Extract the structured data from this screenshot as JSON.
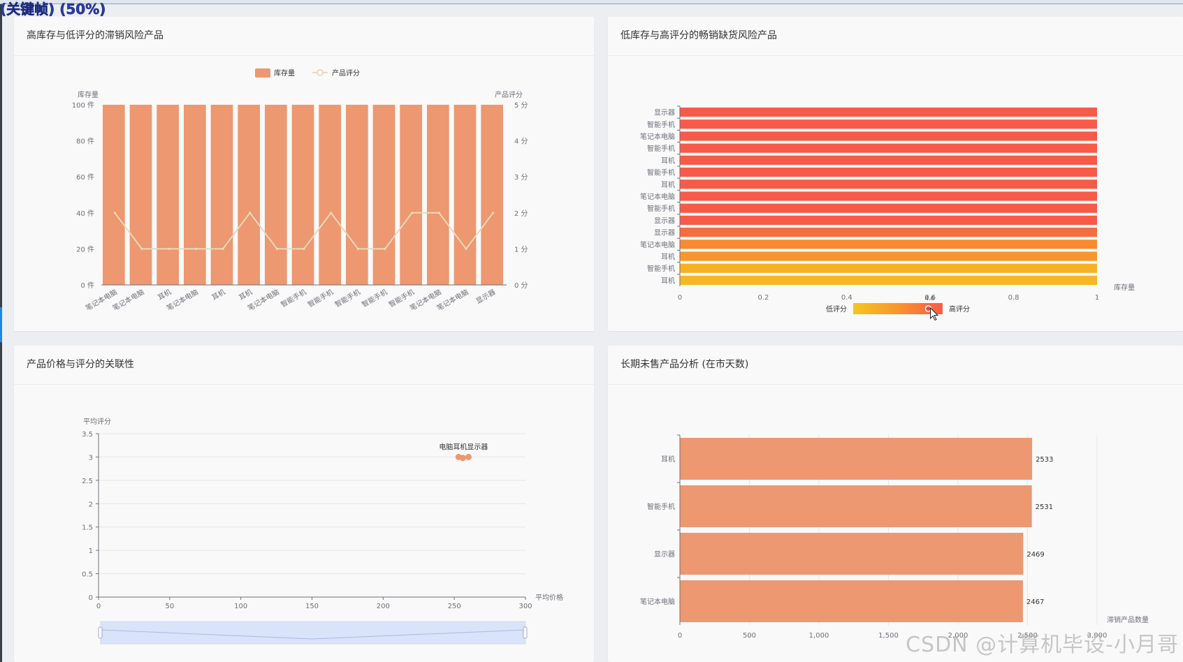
{
  "header": {
    "caption": "(关键帧) (50%)"
  },
  "watermark": "CSDN @计算机毕设-小月哥",
  "colors": {
    "bar": "#ed9870",
    "line": "#e8d9bc",
    "grid": "#e6e6e6",
    "axis": "#6e7079",
    "heat_low": "#f6c520",
    "heat_mid": "#f7962c",
    "heat_high": "#f85a4a",
    "zoom": "#c8d7f7"
  },
  "panels": {
    "p1": {
      "title": "高库存与低评分的滞销风险产品"
    },
    "p2": {
      "title": "低库存与高评分的畅销缺货风险产品"
    },
    "p3": {
      "title": "产品价格与评分的关联性"
    },
    "p4": {
      "title": "长期未售产品分析 (在市天数)"
    }
  },
  "chart_data": [
    {
      "id": "p1",
      "type": "bar",
      "title": "高库存与低评分的滞销风险产品",
      "legend": [
        "库存量",
        "产品评分"
      ],
      "legend_position": "top-center",
      "ylabel_left": "库存量",
      "ylabel_right": "产品评分",
      "y_left_ticks": [
        "0 件",
        "20 件",
        "40 件",
        "60 件",
        "80 件",
        "100 件"
      ],
      "y_right_ticks": [
        "0 分",
        "1 分",
        "2 分",
        "3 分",
        "4 分",
        "5 分"
      ],
      "ylim_left": [
        0,
        100
      ],
      "ylim_right": [
        0,
        5
      ],
      "categories": [
        "笔记本电脑",
        "笔记本电脑",
        "耳机",
        "笔记本电脑",
        "耳机",
        "耳机",
        "笔记本电脑",
        "智能手机",
        "智能手机",
        "智能手机",
        "智能手机",
        "智能手机",
        "笔记本电脑",
        "笔记本电脑",
        "显示器"
      ],
      "series": [
        {
          "name": "库存量",
          "type": "bar",
          "axis": "left",
          "values": [
            100,
            100,
            100,
            100,
            100,
            100,
            100,
            100,
            100,
            100,
            100,
            100,
            100,
            100,
            100
          ]
        },
        {
          "name": "产品评分",
          "type": "line",
          "axis": "right",
          "values": [
            2,
            1,
            1,
            1,
            1,
            2,
            1,
            1,
            2,
            1,
            1,
            2,
            2,
            1,
            2
          ]
        }
      ]
    },
    {
      "id": "p2",
      "type": "bar",
      "orientation": "horizontal",
      "title": "低库存与高评分的畅销缺货风险产品",
      "xlabel": "库存量",
      "xlim": [
        0,
        1
      ],
      "x_ticks": [
        "0",
        "0.2",
        "0.4",
        "0.6",
        "0.8",
        "1"
      ],
      "categories": [
        "显示器",
        "智能手机",
        "笔记本电脑",
        "智能手机",
        "耳机",
        "智能手机",
        "耳机",
        "笔记本电脑",
        "智能手机",
        "显示器",
        "显示器",
        "笔记本电脑",
        "耳机",
        "智能手机",
        "耳机"
      ],
      "values": [
        1,
        1,
        1,
        1,
        1,
        1,
        1,
        1,
        1,
        1,
        1,
        1,
        1,
        1,
        1
      ],
      "bar_color_level": [
        1,
        1,
        1,
        1,
        1,
        1,
        1,
        1,
        1,
        1,
        0.85,
        0.6,
        0.5,
        0.2,
        0.15
      ],
      "visual_map": {
        "low_label": "低评分",
        "high_label": "高评分",
        "handle_value_label": "4.6"
      }
    },
    {
      "id": "p3",
      "type": "scatter",
      "title": "产品价格与评分的关联性",
      "xlabel": "平均价格",
      "ylabel": "平均评分",
      "xlim": [
        0,
        300
      ],
      "ylim": [
        0,
        3.5
      ],
      "x_ticks": [
        "0",
        "50",
        "100",
        "150",
        "200",
        "250",
        "300"
      ],
      "y_ticks": [
        "0",
        "0.5",
        "1",
        "1.5",
        "2",
        "2.5",
        "3",
        "3.5"
      ],
      "points": [
        {
          "x": 253,
          "y": 3.0,
          "label": "电脑"
        },
        {
          "x": 256,
          "y": 2.98,
          "label": "耳机"
        },
        {
          "x": 260,
          "y": 3.0,
          "label": "显示器"
        }
      ],
      "point_label_text": "电脑耳机显示器",
      "datazoom": true
    },
    {
      "id": "p4",
      "type": "bar",
      "orientation": "horizontal",
      "title": "长期未售产品分析 (在市天数)",
      "xlabel": "滞销产品数量",
      "xlim": [
        0,
        3000
      ],
      "x_ticks": [
        "0",
        "500",
        "1,000",
        "1,500",
        "2,000",
        "2,500",
        "3,000"
      ],
      "categories": [
        "耳机",
        "智能手机",
        "显示器",
        "笔记本电脑"
      ],
      "values": [
        2533,
        2531,
        2469,
        2467
      ]
    }
  ]
}
